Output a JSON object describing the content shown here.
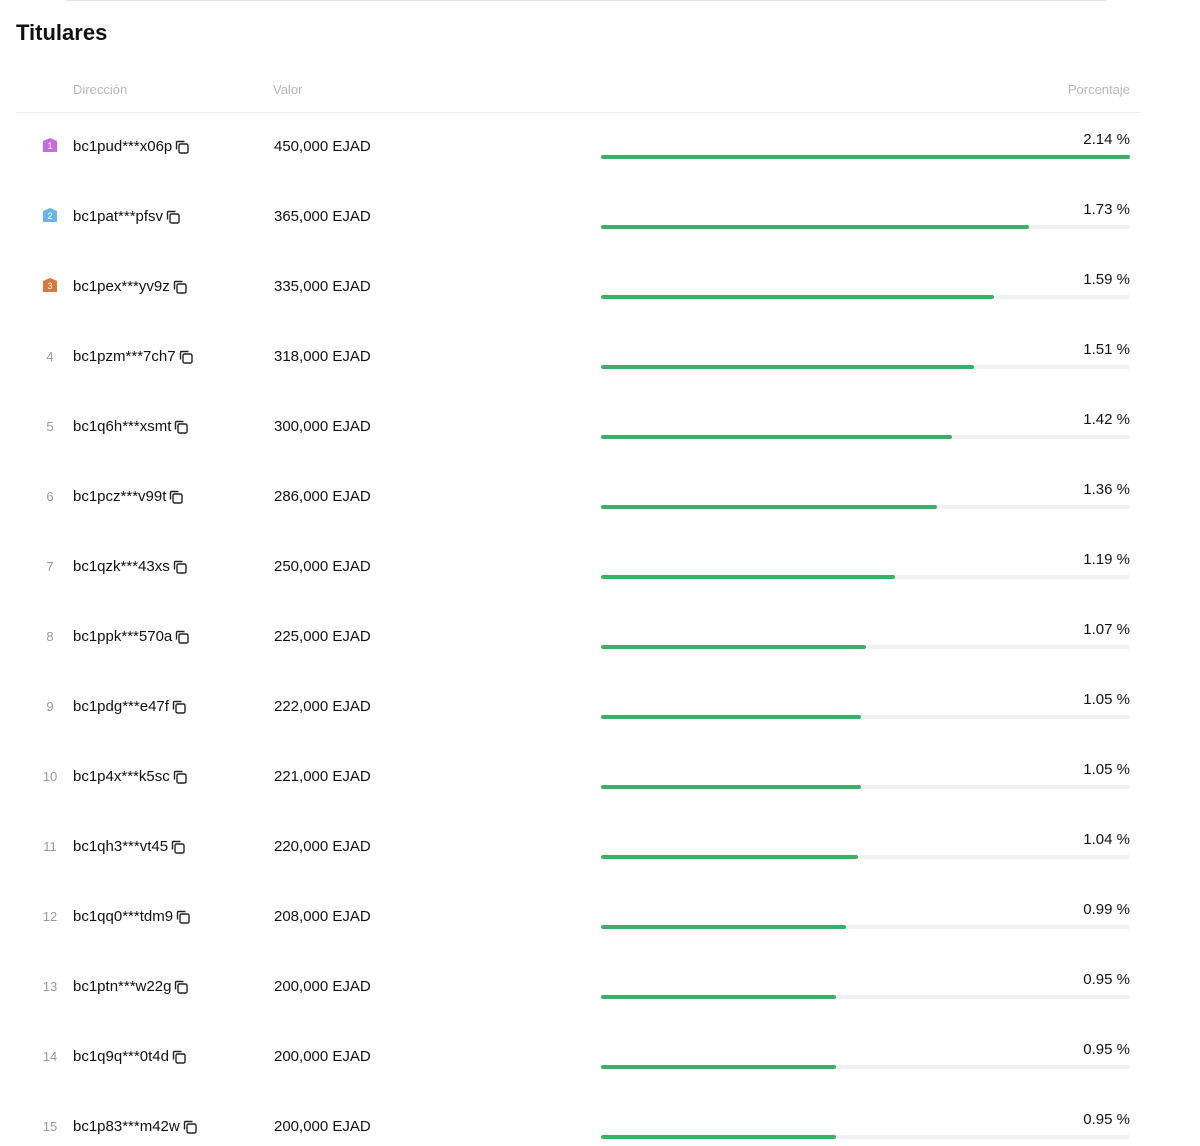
{
  "title": "Titulares",
  "table": {
    "header": {
      "address": "Dirección",
      "value": "Valor",
      "percent": "Porcentaje"
    },
    "rows": [
      {
        "rank": 1,
        "address": "bc1pud***x06p",
        "value": "450,000 EJAD",
        "percent": 2.14,
        "percent_label": "2.14 %"
      },
      {
        "rank": 2,
        "address": "bc1pat***pfsv",
        "value": "365,000 EJAD",
        "percent": 1.73,
        "percent_label": "1.73 %"
      },
      {
        "rank": 3,
        "address": "bc1pex***yv9z",
        "value": "335,000 EJAD",
        "percent": 1.59,
        "percent_label": "1.59 %"
      },
      {
        "rank": 4,
        "address": "bc1pzm***7ch7",
        "value": "318,000 EJAD",
        "percent": 1.51,
        "percent_label": "1.51 %"
      },
      {
        "rank": 5,
        "address": "bc1q6h***xsmt",
        "value": "300,000 EJAD",
        "percent": 1.42,
        "percent_label": "1.42 %"
      },
      {
        "rank": 6,
        "address": "bc1pcz***v99t",
        "value": "286,000 EJAD",
        "percent": 1.36,
        "percent_label": "1.36 %"
      },
      {
        "rank": 7,
        "address": "bc1qzk***43xs",
        "value": "250,000 EJAD",
        "percent": 1.19,
        "percent_label": "1.19 %"
      },
      {
        "rank": 8,
        "address": "bc1ppk***570a",
        "value": "225,000 EJAD",
        "percent": 1.07,
        "percent_label": "1.07 %"
      },
      {
        "rank": 9,
        "address": "bc1pdg***e47f",
        "value": "222,000 EJAD",
        "percent": 1.05,
        "percent_label": "1.05 %"
      },
      {
        "rank": 10,
        "address": "bc1p4x***k5sc",
        "value": "221,000 EJAD",
        "percent": 1.05,
        "percent_label": "1.05 %"
      },
      {
        "rank": 11,
        "address": "bc1qh3***vt45",
        "value": "220,000 EJAD",
        "percent": 1.04,
        "percent_label": "1.04 %"
      },
      {
        "rank": 12,
        "address": "bc1qq0***tdm9",
        "value": "208,000 EJAD",
        "percent": 0.99,
        "percent_label": "0.99 %"
      },
      {
        "rank": 13,
        "address": "bc1ptn***w22g",
        "value": "200,000 EJAD",
        "percent": 0.95,
        "percent_label": "0.95 %"
      },
      {
        "rank": 14,
        "address": "bc1q9q***0t4d",
        "value": "200,000 EJAD",
        "percent": 0.95,
        "percent_label": "0.95 %"
      },
      {
        "rank": 15,
        "address": "bc1p83***m42w",
        "value": "200,000 EJAD",
        "percent": 0.95,
        "percent_label": "0.95 %"
      }
    ]
  }
}
